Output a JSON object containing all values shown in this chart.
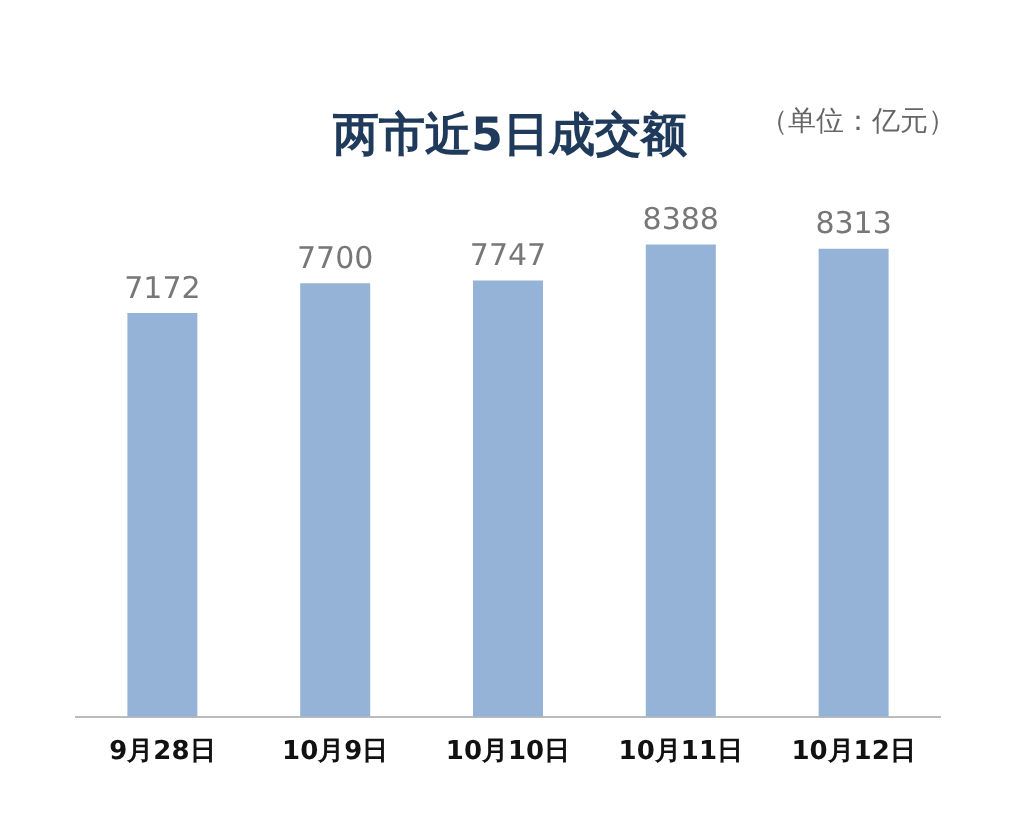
{
  "chart_data": {
    "type": "bar",
    "title": "两市近5日成交额",
    "annotations": [
      "（单位：亿元）"
    ],
    "categories": [
      "9月28日",
      "10月9日",
      "10月10日",
      "10月11日",
      "10月12日"
    ],
    "values": [
      7172,
      7700,
      7747,
      8388,
      8313
    ],
    "color": "#95b3d7",
    "data_labels": true,
    "grid": false,
    "legend": false
  }
}
